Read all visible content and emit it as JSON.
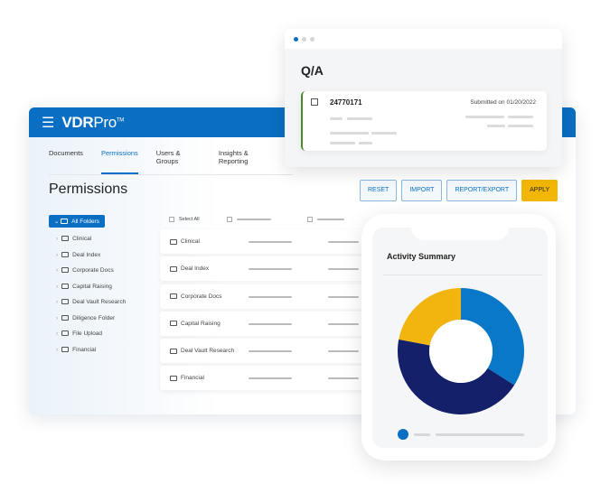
{
  "app": {
    "menu_icon": "hamburger-icon",
    "logo_bold": "VDR",
    "logo_light": "Pro",
    "logo_tm": "TM"
  },
  "tabs": [
    {
      "label": "Documents"
    },
    {
      "label": "Permissions",
      "active": true
    },
    {
      "label": "Users & Groups"
    },
    {
      "label": "Insights & Reporting"
    }
  ],
  "page_title": "Permissions",
  "buttons": {
    "reset": "RESET",
    "import": "IMPORT",
    "report_export": "REPORT/EXPORT",
    "apply": "APPLY"
  },
  "tree": {
    "root": "All Folders",
    "items": [
      "Clinical",
      "Deal Index",
      "Corporate Docs",
      "Capital Raising",
      "Deal Vault Research",
      "Diligence Folder",
      "File Upload",
      "Financial"
    ]
  },
  "table": {
    "select_all": "Select All",
    "rows": [
      "Clinical",
      "Deal Index",
      "Corporate Docs",
      "Capital Raising",
      "Deal Vault Research",
      "Financial"
    ]
  },
  "qa": {
    "title": "Q/A",
    "item_id": "24770171",
    "submitted": "Submitted on 01/20/2022"
  },
  "activity": {
    "title": "Activity Summary"
  },
  "chart_data": {
    "type": "pie",
    "donut": true,
    "values": [
      34,
      44,
      22
    ],
    "colors": [
      "#0a78c8",
      "#14206a",
      "#f2b50f"
    ]
  },
  "colors": {
    "brand": "#0a6fc2",
    "apply": "#f2b705",
    "qa_accent": "#4a8a2c"
  }
}
